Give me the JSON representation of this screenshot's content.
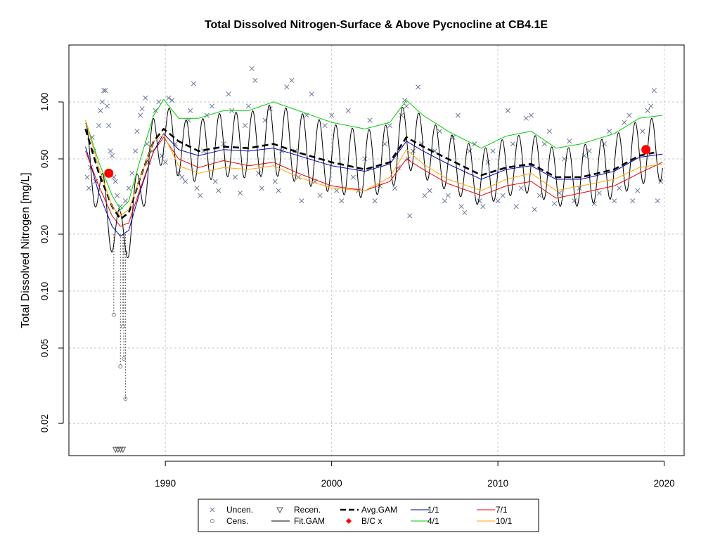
{
  "chart_data": {
    "type": "line",
    "title": "Total Dissolved Nitrogen-Surface & Above Pycnocline at CB4.1E",
    "xlabel": "",
    "ylabel": "Total Dissolved Nitrogen [mg/L]",
    "y_scale": "log",
    "xlim": [
      1984.2,
      2021.2
    ],
    "ylim": [
      0.0135,
      2.0
    ],
    "x_ticks": [
      {
        "value": 1990,
        "label": "1990"
      },
      {
        "value": 2000,
        "label": "2000"
      },
      {
        "value": 2010,
        "label": "2010"
      },
      {
        "value": 2020,
        "label": "2020"
      }
    ],
    "y_ticks": [
      {
        "value": 1.0,
        "label": "1.00"
      },
      {
        "value": 0.5,
        "label": "0.50"
      },
      {
        "value": 0.2,
        "label": "0.20"
      },
      {
        "value": 0.1,
        "label": "0.10"
      },
      {
        "value": 0.05,
        "label": "0.05"
      },
      {
        "value": 0.02,
        "label": "0.02"
      }
    ],
    "grid": true,
    "legend_position": "bottom",
    "legend": [
      {
        "label": "Uncen.",
        "symbol": "x",
        "color": "#6b7a99"
      },
      {
        "label": "Cens.",
        "symbol": "circle-open",
        "color": "#808080"
      },
      {
        "label": "Recen.",
        "symbol": "triangle-down-open",
        "color": "#555555"
      },
      {
        "label": "Fit.GAM",
        "symbol": "line",
        "color": "#000000"
      },
      {
        "label": "Avg.GAM",
        "symbol": "dashed-line",
        "color": "#000000"
      },
      {
        "label": "B/C x",
        "symbol": "diamond",
        "color": "#ff0000"
      },
      {
        "label": "1/1",
        "symbol": "line",
        "color": "#0000aa"
      },
      {
        "label": "4/1",
        "symbol": "line",
        "color": "#00cc00"
      },
      {
        "label": "7/1",
        "symbol": "line",
        "color": "#ee0000"
      },
      {
        "label": "10/1",
        "symbol": "line",
        "color": "#ffa500"
      }
    ],
    "series": [
      {
        "name": "Avg.GAM",
        "color": "#000000",
        "style": "dashed",
        "x": [
          1985.2,
          1986.0,
          1986.8,
          1987.3,
          1987.8,
          1988.5,
          1989.3,
          1989.9,
          1990.8,
          1992.0,
          1993.5,
          1995.0,
          1996.5,
          1998.0,
          2000.0,
          2002.0,
          2003.5,
          2004.5,
          2005.5,
          2007.0,
          2009.0,
          2010.5,
          2012.0,
          2013.5,
          2015.0,
          2017.0,
          2018.5,
          2019.4
        ],
        "y": [
          0.72,
          0.42,
          0.28,
          0.24,
          0.26,
          0.4,
          0.62,
          0.72,
          0.62,
          0.55,
          0.58,
          0.57,
          0.6,
          0.54,
          0.48,
          0.44,
          0.48,
          0.65,
          0.58,
          0.5,
          0.41,
          0.45,
          0.47,
          0.4,
          0.4,
          0.44,
          0.52,
          0.54
        ]
      },
      {
        "name": "1/1",
        "color": "#0000aa",
        "style": "solid",
        "x": [
          1985.2,
          1986.0,
          1986.8,
          1987.3,
          1987.8,
          1988.5,
          1989.3,
          1989.9,
          1990.8,
          1992.0,
          1993.5,
          1995.0,
          1996.5,
          1998.0,
          2000.0,
          2002.0,
          2003.5,
          2004.5,
          2005.5,
          2007.0,
          2009.0,
          2010.5,
          2012.0,
          2013.5,
          2015.0,
          2017.0,
          2018.5,
          2019.9
        ],
        "y": [
          0.58,
          0.33,
          0.22,
          0.195,
          0.21,
          0.34,
          0.55,
          0.68,
          0.56,
          0.52,
          0.56,
          0.55,
          0.57,
          0.52,
          0.46,
          0.43,
          0.47,
          0.62,
          0.55,
          0.47,
          0.39,
          0.44,
          0.46,
          0.39,
          0.39,
          0.43,
          0.51,
          0.53
        ]
      },
      {
        "name": "4/1",
        "color": "#00cc00",
        "style": "solid",
        "x": [
          1985.2,
          1986.0,
          1986.8,
          1987.3,
          1987.8,
          1988.5,
          1989.3,
          1989.9,
          1990.8,
          1992.0,
          1993.5,
          1995.0,
          1996.5,
          1998.0,
          2000.0,
          2002.0,
          2003.5,
          2004.5,
          2005.5,
          2007.0,
          2009.0,
          2010.5,
          2012.0,
          2013.5,
          2015.0,
          2017.0,
          2018.5,
          2019.9
        ],
        "y": [
          0.8,
          0.48,
          0.32,
          0.27,
          0.3,
          0.5,
          0.85,
          1.03,
          0.82,
          0.82,
          0.9,
          0.9,
          1.0,
          0.9,
          0.78,
          0.72,
          0.78,
          1.02,
          0.85,
          0.7,
          0.57,
          0.66,
          0.7,
          0.57,
          0.6,
          0.68,
          0.82,
          0.85
        ]
      },
      {
        "name": "7/1",
        "color": "#ee0000",
        "style": "solid",
        "x": [
          1985.2,
          1986.0,
          1986.8,
          1987.3,
          1987.8,
          1988.5,
          1989.3,
          1989.9,
          1990.8,
          1992.0,
          1993.5,
          1995.0,
          1996.5,
          1998.0,
          2000.0,
          2002.0,
          2003.5,
          2004.5,
          2005.5,
          2007.0,
          2009.0,
          2010.5,
          2012.0,
          2013.5,
          2015.0,
          2017.0,
          2018.5,
          2019.9
        ],
        "y": [
          0.55,
          0.36,
          0.25,
          0.22,
          0.23,
          0.35,
          0.55,
          0.65,
          0.5,
          0.45,
          0.49,
          0.46,
          0.48,
          0.42,
          0.36,
          0.34,
          0.38,
          0.5,
          0.44,
          0.37,
          0.32,
          0.36,
          0.38,
          0.31,
          0.33,
          0.36,
          0.42,
          0.48
        ]
      },
      {
        "name": "10/1",
        "color": "#ffa500",
        "style": "solid",
        "x": [
          1985.2,
          1986.0,
          1986.8,
          1987.3,
          1987.8,
          1988.5,
          1989.3,
          1989.9,
          1990.8,
          1992.0,
          1993.5,
          1995.0,
          1996.5,
          1998.0,
          2000.0,
          2002.0,
          2003.5,
          2004.5,
          2005.5,
          2007.0,
          2009.0,
          2010.5,
          2012.0,
          2013.5,
          2015.0,
          2017.0,
          2018.5,
          2019.9
        ],
        "y": [
          0.8,
          0.45,
          0.28,
          0.25,
          0.27,
          0.4,
          0.62,
          0.67,
          0.46,
          0.42,
          0.45,
          0.44,
          0.46,
          0.4,
          0.35,
          0.34,
          0.4,
          0.56,
          0.47,
          0.39,
          0.34,
          0.39,
          0.42,
          0.34,
          0.36,
          0.39,
          0.45,
          0.47
        ]
      }
    ],
    "fit_gam": {
      "name": "Fit.GAM",
      "color": "#000000",
      "description_free": true,
      "x_start": 1985.2,
      "x_end": 2019.9,
      "seasonal_amplitude_ratio": 1.45
    },
    "bc_points": [
      {
        "x": 1986.6,
        "y": 0.42
      },
      {
        "x": 2018.9,
        "y": 0.56
      }
    ],
    "uncensored_points": [
      [
        1985.3,
        0.4
      ],
      [
        1985.4,
        0.35
      ],
      [
        1985.5,
        0.45
      ],
      [
        1985.6,
        0.65
      ],
      [
        1985.7,
        0.55
      ],
      [
        1985.8,
        0.38
      ],
      [
        1986.0,
        0.75
      ],
      [
        1986.1,
        0.9
      ],
      [
        1986.2,
        1.0
      ],
      [
        1986.3,
        1.15
      ],
      [
        1986.4,
        1.15
      ],
      [
        1986.5,
        0.95
      ],
      [
        1986.6,
        0.75
      ],
      [
        1986.7,
        0.55
      ],
      [
        1986.8,
        0.52
      ],
      [
        1986.9,
        0.4
      ],
      [
        1987.0,
        0.38
      ],
      [
        1987.1,
        0.32
      ],
      [
        1987.3,
        0.28
      ],
      [
        1987.6,
        0.3
      ],
      [
        1987.8,
        0.35
      ],
      [
        1988.0,
        0.42
      ],
      [
        1988.2,
        0.55
      ],
      [
        1988.3,
        0.7
      ],
      [
        1988.5,
        0.85
      ],
      [
        1988.6,
        0.92
      ],
      [
        1988.8,
        1.05
      ],
      [
        1988.9,
        0.6
      ],
      [
        1989.0,
        0.48
      ],
      [
        1989.2,
        0.55
      ],
      [
        1989.4,
        0.9
      ],
      [
        1989.6,
        1.0
      ],
      [
        1989.8,
        0.52
      ],
      [
        1990.0,
        0.48
      ],
      [
        1990.2,
        1.05
      ],
      [
        1990.4,
        1.02
      ],
      [
        1990.6,
        0.6
      ],
      [
        1990.8,
        0.42
      ],
      [
        1991.0,
        0.4
      ],
      [
        1991.2,
        0.38
      ],
      [
        1991.4,
        0.8
      ],
      [
        1991.5,
        0.9
      ],
      [
        1991.7,
        1.25
      ],
      [
        1991.9,
        0.35
      ],
      [
        1992.1,
        0.32
      ],
      [
        1992.3,
        0.55
      ],
      [
        1992.5,
        0.85
      ],
      [
        1992.8,
        0.95
      ],
      [
        1993.0,
        0.38
      ],
      [
        1993.2,
        0.34
      ],
      [
        1993.5,
        0.6
      ],
      [
        1993.8,
        1.1
      ],
      [
        1994.0,
        0.9
      ],
      [
        1994.2,
        0.4
      ],
      [
        1994.5,
        0.33
      ],
      [
        1994.8,
        0.75
      ],
      [
        1995.0,
        0.95
      ],
      [
        1995.2,
        1.5
      ],
      [
        1995.4,
        1.3
      ],
      [
        1995.6,
        0.42
      ],
      [
        1995.8,
        0.35
      ],
      [
        1996.0,
        0.8
      ],
      [
        1996.3,
        0.92
      ],
      [
        1996.6,
        0.38
      ],
      [
        1996.8,
        0.34
      ],
      [
        1997.0,
        0.55
      ],
      [
        1997.3,
        1.2
      ],
      [
        1997.6,
        1.3
      ],
      [
        1997.8,
        0.55
      ],
      [
        1998.0,
        0.4
      ],
      [
        1998.2,
        0.3
      ],
      [
        1998.5,
        0.85
      ],
      [
        1998.8,
        1.1
      ],
      [
        1999.0,
        0.38
      ],
      [
        1999.3,
        0.32
      ],
      [
        1999.6,
        0.75
      ],
      [
        2000.0,
        0.85
      ],
      [
        2000.3,
        0.34
      ],
      [
        2000.6,
        0.3
      ],
      [
        2001.0,
        0.9
      ],
      [
        2001.3,
        0.4
      ],
      [
        2001.6,
        0.34
      ],
      [
        2002.0,
        0.5
      ],
      [
        2002.3,
        0.8
      ],
      [
        2002.6,
        0.3
      ],
      [
        2002.9,
        0.36
      ],
      [
        2003.2,
        0.6
      ],
      [
        2003.5,
        0.75
      ],
      [
        2003.8,
        0.35
      ],
      [
        2004.0,
        0.45
      ],
      [
        2004.2,
        0.85
      ],
      [
        2004.4,
        1.02
      ],
      [
        2004.5,
        0.95
      ],
      [
        2004.6,
        0.5
      ],
      [
        2004.7,
        0.25
      ],
      [
        2004.9,
        0.55
      ],
      [
        2005.2,
        1.2
      ],
      [
        2005.4,
        0.6
      ],
      [
        2005.6,
        0.32
      ],
      [
        2005.9,
        0.34
      ],
      [
        2006.2,
        0.55
      ],
      [
        2006.5,
        0.7
      ],
      [
        2006.8,
        0.3
      ],
      [
        2007.0,
        0.32
      ],
      [
        2007.3,
        0.65
      ],
      [
        2007.6,
        0.85
      ],
      [
        2007.8,
        0.28
      ],
      [
        2008.0,
        0.26
      ],
      [
        2008.3,
        0.55
      ],
      [
        2008.6,
        0.6
      ],
      [
        2008.9,
        0.3
      ],
      [
        2009.1,
        0.28
      ],
      [
        2009.4,
        0.48
      ],
      [
        2009.7,
        0.55
      ],
      [
        2010.0,
        0.3
      ],
      [
        2010.3,
        0.32
      ],
      [
        2010.6,
        0.9
      ],
      [
        2010.9,
        0.6
      ],
      [
        2011.1,
        0.28
      ],
      [
        2011.4,
        0.35
      ],
      [
        2011.7,
        0.82
      ],
      [
        2012.0,
        0.85
      ],
      [
        2012.2,
        0.27
      ],
      [
        2012.5,
        0.32
      ],
      [
        2012.8,
        0.6
      ],
      [
        2013.1,
        0.7
      ],
      [
        2013.4,
        0.29
      ],
      [
        2013.7,
        0.33
      ],
      [
        2014.0,
        0.5
      ],
      [
        2014.3,
        0.62
      ],
      [
        2014.6,
        0.3
      ],
      [
        2014.9,
        0.35
      ],
      [
        2015.2,
        0.52
      ],
      [
        2015.5,
        0.55
      ],
      [
        2015.8,
        0.29
      ],
      [
        2016.1,
        0.33
      ],
      [
        2016.4,
        0.6
      ],
      [
        2016.7,
        0.7
      ],
      [
        2017.0,
        0.3
      ],
      [
        2017.3,
        0.35
      ],
      [
        2017.6,
        0.78
      ],
      [
        2017.9,
        0.85
      ],
      [
        2018.1,
        0.3
      ],
      [
        2018.4,
        0.34
      ],
      [
        2018.7,
        0.7
      ],
      [
        2019.0,
        0.9
      ],
      [
        2019.2,
        0.95
      ],
      [
        2019.4,
        1.15
      ],
      [
        2019.6,
        0.3
      ],
      [
        2019.8,
        0.38
      ]
    ],
    "censored_points": [
      {
        "x": 1986.9,
        "y": 0.075
      },
      {
        "x": 1987.3,
        "y": 0.04
      },
      {
        "x": 1987.5,
        "y": 0.044
      },
      {
        "x": 1987.45,
        "y": 0.065
      },
      {
        "x": 1987.6,
        "y": 0.027
      },
      {
        "x": 1987.6,
        "y": 0.16
      }
    ],
    "recensored_points": [
      {
        "x": 1987.0,
        "y": 0.0145
      },
      {
        "x": 1987.15,
        "y": 0.0145
      },
      {
        "x": 1987.3,
        "y": 0.0145
      },
      {
        "x": 1987.45,
        "y": 0.0145
      }
    ]
  }
}
